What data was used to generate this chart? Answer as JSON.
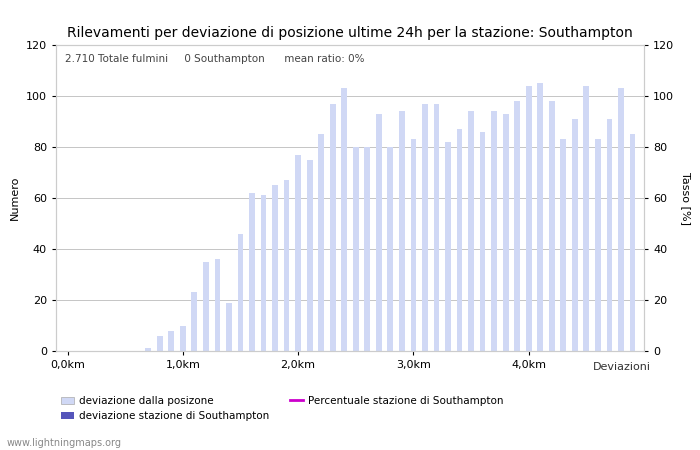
{
  "title": "Rilevamenti per deviazione di posizione ultime 24h per la stazione: Southampton",
  "subtitle": "2.710 Totale fulmini     0 Southampton      mean ratio: 0%",
  "xlabel": "Deviazioni",
  "ylabel_left": "Numero",
  "ylabel_right": "Tasso [%]",
  "watermark": "www.lightningmaps.org",
  "ylim": [
    0,
    120
  ],
  "yticks": [
    0,
    20,
    40,
    60,
    80,
    100,
    120
  ],
  "xtick_labels": [
    "0,0km",
    "1,0km",
    "2,0km",
    "3,0km",
    "4,0km"
  ],
  "xtick_positions": [
    0,
    10,
    20,
    30,
    40
  ],
  "bar_values": [
    0,
    0,
    0,
    0,
    0,
    0,
    0,
    1,
    6,
    8,
    10,
    23,
    35,
    36,
    19,
    46,
    62,
    61,
    65,
    67,
    77,
    75,
    85,
    97,
    103,
    80,
    80,
    93,
    80,
    94,
    83,
    97,
    97,
    82,
    87,
    94,
    86,
    94,
    93,
    98,
    104,
    105,
    98,
    83,
    91,
    104,
    83,
    91,
    103,
    85
  ],
  "bar_color": "#d0d8f5",
  "station_bar_color": "#5555bb",
  "station_bar_values": [],
  "line_values": [],
  "line_color": "#cc00cc",
  "legend_labels": [
    "deviazione dalla posizone",
    "deviazione stazione di Southampton",
    "Percentuale stazione di Southampton"
  ],
  "bg_color": "#ffffff",
  "grid_color": "#bbbbbb",
  "title_fontsize": 10,
  "label_fontsize": 8,
  "tick_fontsize": 8
}
